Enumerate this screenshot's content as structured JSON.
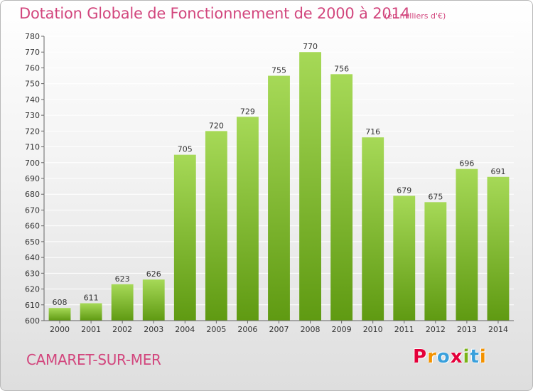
{
  "title": "Dotation Globale de Fonctionnement de 2000 à 2014",
  "unit": "(en milliers d'€)",
  "city": "CAMARET-SUR-MER",
  "logo": {
    "letters": [
      "P",
      "r",
      "o",
      "x",
      "i",
      "t",
      "i"
    ],
    "colors": [
      "#e4003a",
      "#f39200",
      "#3aa0dc",
      "#e4003a",
      "#7ab317",
      "#3aa0dc",
      "#f39200"
    ]
  },
  "colors": {
    "title": "#d2467d",
    "bar_top": "#a6d957",
    "bar_bottom": "#5f9a12",
    "axis": "#666666",
    "grid": "#ffffff"
  },
  "chart_data": {
    "type": "bar",
    "categories": [
      "2000",
      "2001",
      "2002",
      "2003",
      "2004",
      "2005",
      "2006",
      "2007",
      "2008",
      "2009",
      "2010",
      "2011",
      "2012",
      "2013",
      "2014"
    ],
    "values": [
      608,
      611,
      623,
      626,
      705,
      720,
      729,
      755,
      770,
      756,
      716,
      679,
      675,
      696,
      691
    ],
    "ylim": [
      600,
      780
    ],
    "yticks": [
      600,
      610,
      620,
      630,
      640,
      650,
      660,
      670,
      680,
      690,
      700,
      710,
      720,
      730,
      740,
      750,
      760,
      770,
      780
    ],
    "grid": true,
    "data_labels": true
  }
}
